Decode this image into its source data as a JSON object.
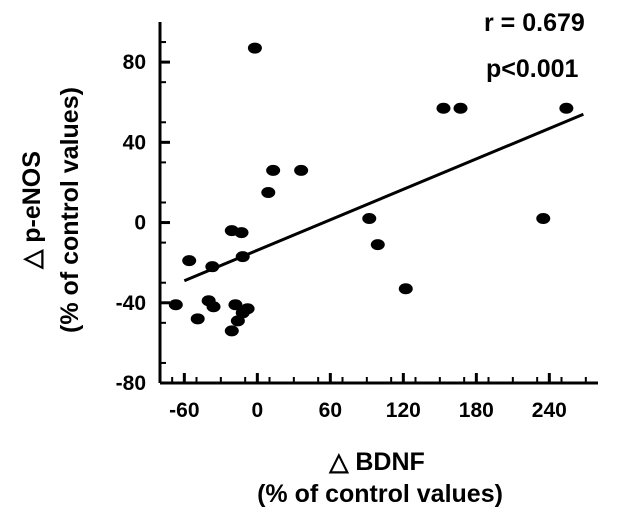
{
  "chart_data": {
    "type": "scatter",
    "xlabel": "△ BDNF",
    "xlabel_sub": "(% of control values)",
    "ylabel": "△ p-eNOS",
    "ylabel_sub": "(% of control values)",
    "xlim": [
      -80,
      280
    ],
    "ylim": [
      -80,
      100
    ],
    "x_ticks": [
      -60,
      0,
      60,
      120,
      180,
      240
    ],
    "y_ticks": [
      80,
      40,
      0,
      -40,
      -80
    ],
    "x_tick_labels": [
      "-60",
      "0",
      "60",
      "120",
      "180",
      "240"
    ],
    "y_tick_labels": [
      "80",
      "40",
      "0",
      "-40",
      "-80"
    ],
    "annotations": [
      "r  = 0.679",
      "p<0.001"
    ],
    "grid": false,
    "points": [
      {
        "x": -2,
        "y": 87
      },
      {
        "x": 153,
        "y": 57
      },
      {
        "x": 167,
        "y": 57
      },
      {
        "x": 254,
        "y": 57
      },
      {
        "x": 13,
        "y": 26
      },
      {
        "x": 36,
        "y": 26
      },
      {
        "x": 9,
        "y": 15
      },
      {
        "x": 92,
        "y": 2
      },
      {
        "x": 235,
        "y": 2
      },
      {
        "x": -21,
        "y": -4
      },
      {
        "x": -13,
        "y": -5
      },
      {
        "x": 99,
        "y": -11
      },
      {
        "x": -12,
        "y": -17
      },
      {
        "x": -56,
        "y": -19
      },
      {
        "x": -37,
        "y": -22
      },
      {
        "x": 122,
        "y": -33
      },
      {
        "x": -40,
        "y": -39
      },
      {
        "x": -36,
        "y": -42
      },
      {
        "x": -18,
        "y": -41
      },
      {
        "x": -8,
        "y": -43
      },
      {
        "x": -12,
        "y": -45
      },
      {
        "x": -67,
        "y": -41
      },
      {
        "x": -49,
        "y": -48
      },
      {
        "x": -16,
        "y": -49
      },
      {
        "x": -21,
        "y": -54
      }
    ],
    "fit_line": {
      "x": [
        -60,
        268
      ],
      "y": [
        -29,
        54
      ]
    }
  }
}
